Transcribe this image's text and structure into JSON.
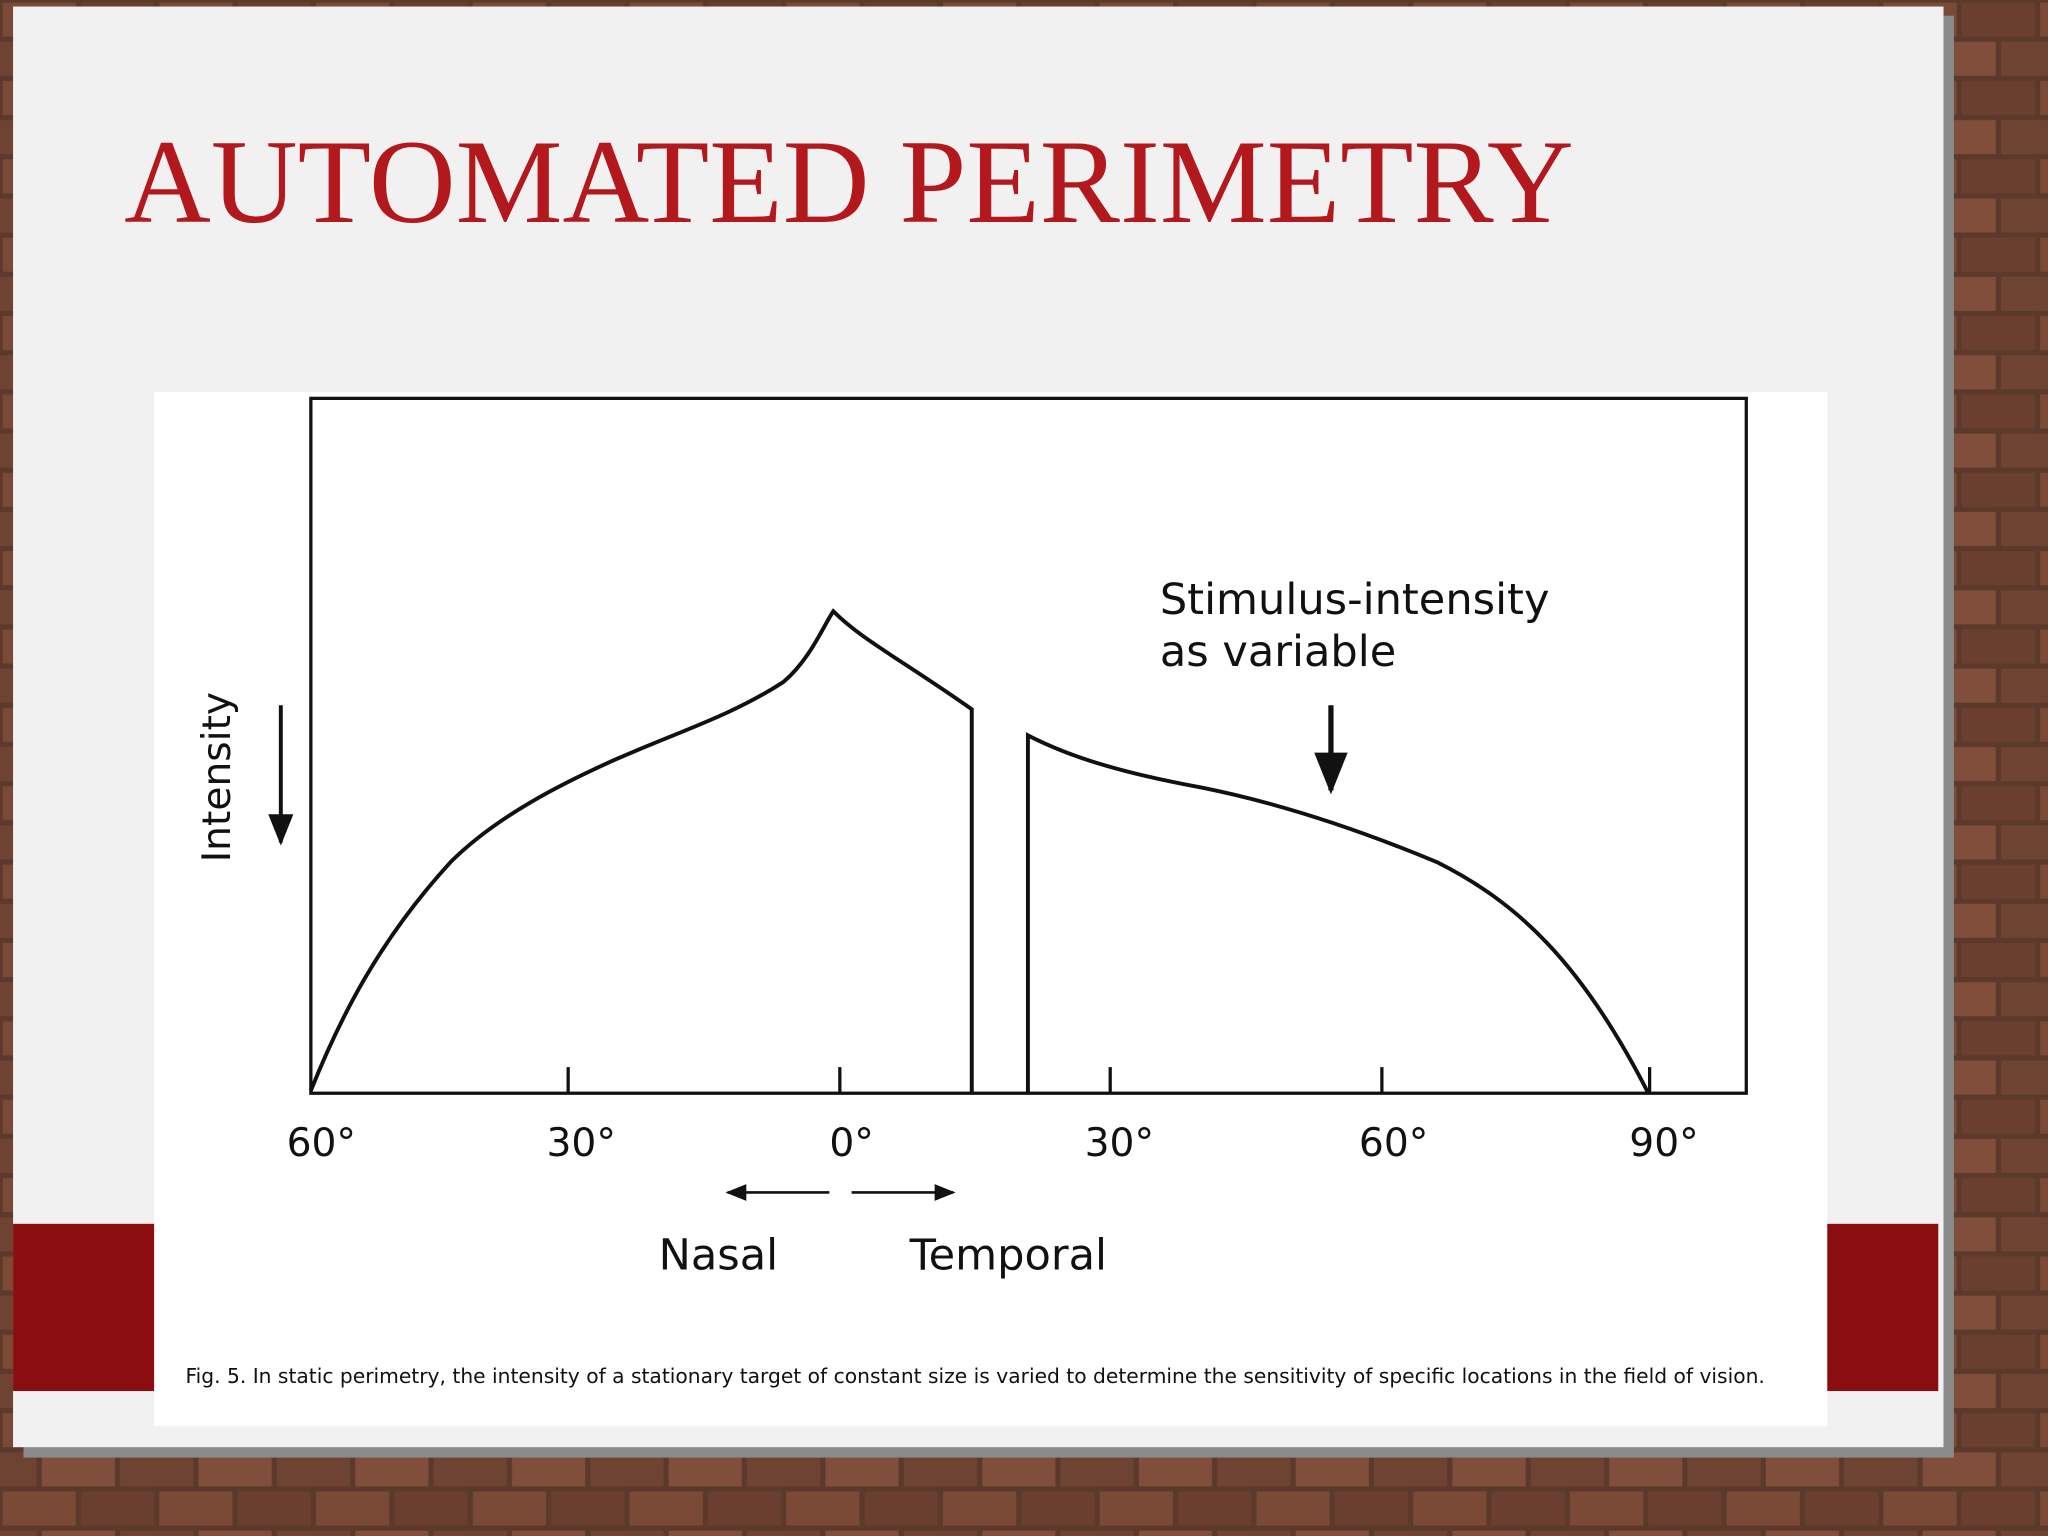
{
  "title": "AUTOMATED PERIMETRY",
  "figure": {
    "annotation": [
      "Stimulus-intensity",
      "as variable"
    ],
    "y_label": "Intensity",
    "x_ticks": [
      "60°",
      "30°",
      "0°",
      "30°",
      "60°",
      "90°"
    ],
    "directions": [
      "Nasal",
      "Temporal"
    ],
    "caption": "Fig. 5. In static perimetry, the intensity of a stationary target of constant size is varied to determine the sensitivity of specific locations in the field of vision."
  }
}
